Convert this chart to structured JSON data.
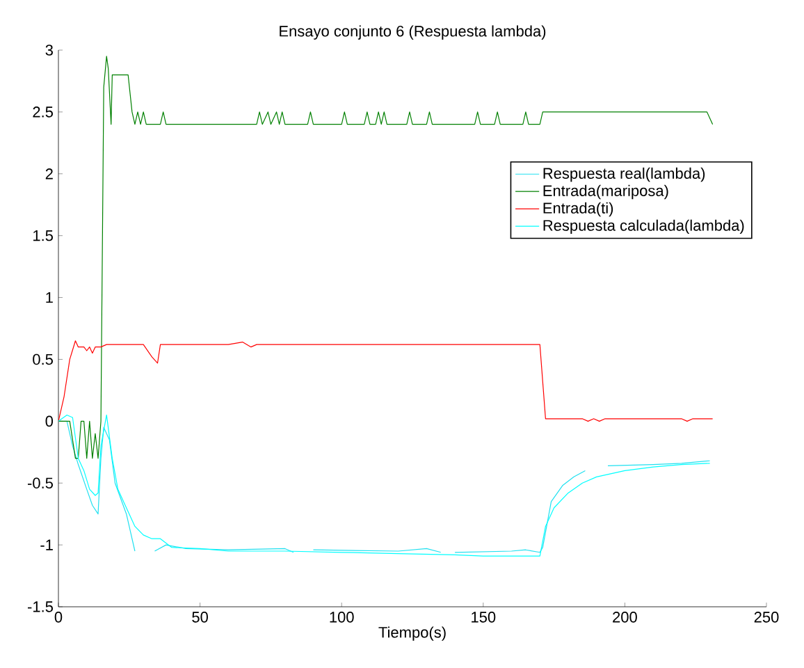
{
  "chart_data": {
    "type": "line",
    "title": "Ensayo conjunto 6 (Respuesta lambda)",
    "xlabel": "Tiempo(s)",
    "xlim": [
      0,
      250
    ],
    "ylim": [
      -1.5,
      3
    ],
    "xticks": [
      0,
      50,
      100,
      150,
      200,
      250
    ],
    "yticks": [
      -1.5,
      -1,
      -0.5,
      0,
      0.5,
      1,
      1.5,
      2,
      2.5,
      3
    ],
    "grid": false,
    "legend": "top right",
    "marker": "none",
    "line_style": "solid",
    "series": [
      {
        "name": "Respuesta real(lambda)",
        "color": "#20e0f0",
        "x": [
          0,
          3,
          5,
          7,
          10,
          12,
          14,
          15,
          16,
          18,
          20,
          24,
          27,
          28,
          34,
          38,
          45,
          60,
          80,
          83,
          85,
          90,
          120,
          130,
          135,
          136,
          140,
          160,
          165,
          170,
          171,
          174,
          178,
          182,
          186,
          187,
          194,
          210,
          220,
          230
        ],
        "values": [
          0,
          0,
          -0.2,
          -0.35,
          -0.55,
          -0.68,
          -0.75,
          -0.3,
          -0.05,
          -0.15,
          -0.5,
          -0.75,
          -1.05,
          null,
          -1.05,
          -1.0,
          -1.03,
          -1.04,
          -1.03,
          -1.06,
          null,
          -1.04,
          -1.05,
          -1.03,
          -1.06,
          null,
          -1.06,
          -1.05,
          -1.04,
          -1.06,
          -1.02,
          -0.65,
          -0.52,
          -0.45,
          -0.4,
          null,
          -0.36,
          -0.35,
          -0.34,
          -0.32
        ]
      },
      {
        "name": "Entrada(mariposa)",
        "color": "#008000",
        "x": [
          0,
          4,
          6,
          7,
          8,
          9,
          10,
          11,
          12,
          13,
          14,
          15,
          16,
          17,
          17.6,
          18.6,
          19,
          24.6,
          26,
          27,
          28,
          29,
          30,
          31,
          32,
          36,
          37,
          38,
          70,
          71,
          72,
          74,
          75,
          77,
          78,
          79,
          80,
          88,
          89,
          90,
          100,
          101,
          102,
          108,
          109,
          110,
          112,
          113,
          114,
          115,
          116,
          123,
          124,
          125,
          130,
          131,
          132,
          147,
          148,
          149,
          154,
          155,
          156,
          164,
          165,
          166,
          170,
          171,
          229,
          231
        ],
        "values": [
          0,
          0,
          -0.3,
          -0.3,
          0,
          0,
          -0.3,
          0,
          -0.3,
          -0.1,
          -0.3,
          0,
          2.7,
          2.95,
          2.85,
          2.4,
          2.8,
          2.8,
          2.5,
          2.4,
          2.5,
          2.4,
          2.5,
          2.4,
          2.4,
          2.4,
          2.5,
          2.4,
          2.4,
          2.5,
          2.4,
          2.5,
          2.4,
          2.5,
          2.4,
          2.5,
          2.4,
          2.4,
          2.5,
          2.4,
          2.4,
          2.5,
          2.4,
          2.4,
          2.5,
          2.4,
          2.4,
          2.5,
          2.4,
          2.5,
          2.4,
          2.4,
          2.5,
          2.4,
          2.4,
          2.5,
          2.4,
          2.4,
          2.5,
          2.4,
          2.4,
          2.5,
          2.4,
          2.4,
          2.5,
          2.4,
          2.4,
          2.5,
          2.5,
          2.4
        ]
      },
      {
        "name": "Entrada(ti)",
        "color": "#ff0000",
        "x": [
          0,
          2,
          4,
          6,
          7,
          9,
          10,
          11,
          12,
          13,
          15,
          17,
          30,
          33,
          35,
          36,
          60,
          65,
          68,
          70,
          170,
          172,
          185,
          187,
          189,
          191,
          193,
          220,
          222,
          224,
          231
        ],
        "values": [
          0,
          0.2,
          0.5,
          0.65,
          0.6,
          0.6,
          0.57,
          0.6,
          0.55,
          0.6,
          0.6,
          0.62,
          0.62,
          0.52,
          0.47,
          0.62,
          0.62,
          0.64,
          0.6,
          0.62,
          0.62,
          0.02,
          0.02,
          0,
          0.02,
          0,
          0.02,
          0.02,
          0,
          0.02,
          0.02
        ]
      },
      {
        "name": "Respuesta calculada(lambda)",
        "color": "#00ffff",
        "x": [
          0,
          3,
          5,
          7,
          9,
          11,
          13,
          14,
          15,
          17,
          19,
          21,
          23,
          25,
          27,
          30,
          33,
          36,
          40,
          50,
          60,
          80,
          100,
          120,
          140,
          150,
          160,
          170,
          172,
          175,
          180,
          185,
          190,
          200,
          210,
          220,
          230
        ],
        "values": [
          0,
          0.05,
          0.03,
          -0.3,
          -0.4,
          -0.55,
          -0.6,
          -0.58,
          -0.2,
          0.05,
          -0.3,
          -0.55,
          -0.65,
          -0.75,
          -0.85,
          -0.92,
          -0.95,
          -0.95,
          -1.02,
          -1.03,
          -1.05,
          -1.05,
          -1.06,
          -1.07,
          -1.08,
          -1.09,
          -1.09,
          -1.09,
          -0.85,
          -0.7,
          -0.58,
          -0.5,
          -0.45,
          -0.4,
          -0.37,
          -0.35,
          -0.34
        ]
      }
    ]
  }
}
